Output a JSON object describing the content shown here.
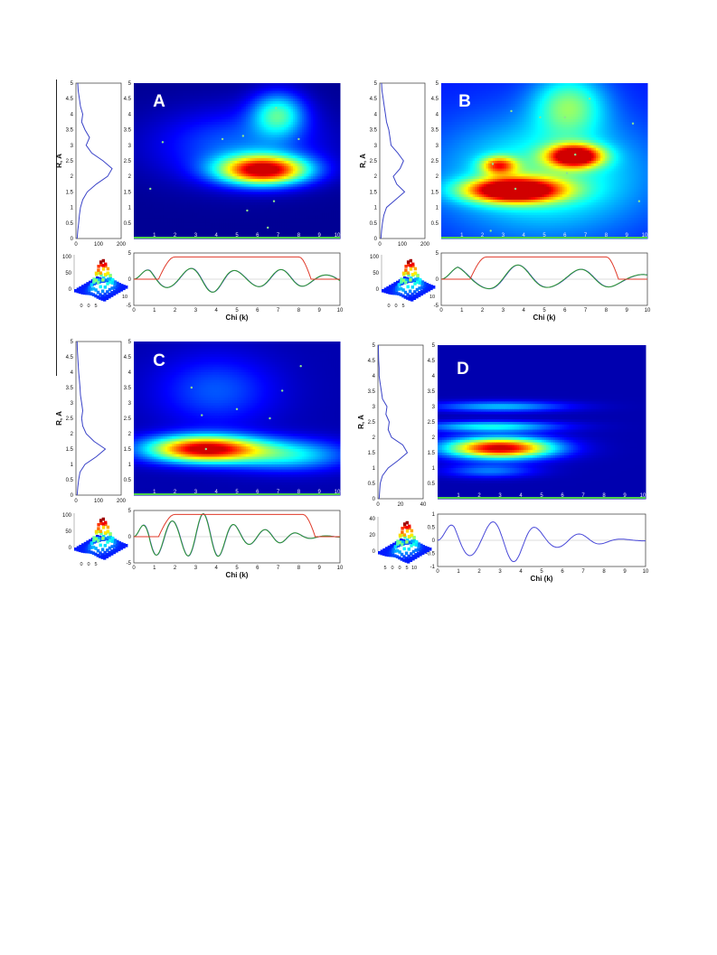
{
  "chart_data": [
    {
      "id": "A",
      "type": "heatmap",
      "panel_letter": "A",
      "heatmap": {
        "xlim": [
          0,
          10
        ],
        "ylim": [
          0,
          5
        ],
        "x_ticks": [
          "1",
          "2",
          "3",
          "4",
          "5",
          "6",
          "7",
          "8",
          "9",
          "10"
        ],
        "y_ticks": [
          "0.5",
          "1",
          "1.5",
          "2",
          "2.5",
          "3",
          "3.5",
          "4",
          "4.5",
          "5"
        ],
        "blobs": [
          {
            "x": 6.3,
            "y": 2.2,
            "sx": 1.5,
            "sy": 0.33,
            "a": 1.0
          },
          {
            "x": 7.0,
            "y": 4.0,
            "sx": 0.9,
            "sy": 0.5,
            "a": 0.42
          },
          {
            "x": 5.0,
            "y": 3.0,
            "sx": 2.8,
            "sy": 0.8,
            "a": 0.22
          }
        ],
        "background_level": 0.0,
        "markers": [
          [
            1.4,
            3.1
          ],
          [
            4.3,
            3.2
          ],
          [
            5.3,
            3.3
          ],
          [
            6.9,
            4.2
          ],
          [
            8.0,
            3.2
          ],
          [
            0.8,
            1.6
          ],
          [
            6.8,
            1.2
          ],
          [
            5.5,
            0.9
          ],
          [
            6.5,
            0.35
          ]
        ]
      },
      "ylabel": "R, A",
      "side_profile": {
        "xlim": [
          0,
          200
        ],
        "x_ticks": [
          "0",
          "100",
          "200"
        ],
        "r": [
          0.0,
          0.25,
          0.5,
          0.75,
          1.0,
          1.25,
          1.5,
          1.75,
          2.0,
          2.25,
          2.5,
          2.75,
          3.0,
          3.25,
          3.5,
          3.75,
          4.0,
          4.25,
          4.5,
          4.75,
          5.0
        ],
        "amp": [
          5,
          8,
          12,
          15,
          20,
          30,
          50,
          90,
          140,
          160,
          120,
          70,
          45,
          60,
          40,
          25,
          30,
          20,
          15,
          10,
          8
        ]
      },
      "signal": {
        "xlim": [
          0,
          10
        ],
        "ylim": [
          -5,
          5
        ],
        "x_ticks": [
          "0",
          "1",
          "2",
          "3",
          "4",
          "5",
          "6",
          "7",
          "8",
          "9",
          "10"
        ],
        "y_ticks": [
          "-5",
          "0",
          "5"
        ],
        "xlabel": "Chi (k)",
        "window": [
          1.2,
          8.6
        ],
        "freq": 2.2,
        "decay": 0.05,
        "amp0": 2.6
      },
      "surface": {
        "z_ticks": [
          "0",
          "50",
          "100"
        ],
        "x_ticks": [
          "0",
          "0",
          "5"
        ],
        "extra": "10"
      }
    },
    {
      "id": "B",
      "type": "heatmap",
      "panel_letter": "B",
      "heatmap": {
        "xlim": [
          0,
          10
        ],
        "ylim": [
          0,
          5
        ],
        "x_ticks": [
          "1",
          "2",
          "3",
          "4",
          "5",
          "6",
          "7",
          "8",
          "9",
          "10"
        ],
        "y_ticks": [
          "0.5",
          "1",
          "1.5",
          "2",
          "2.5",
          "3",
          "3.5",
          "4",
          "4.5",
          "5"
        ],
        "blobs": [
          {
            "x": 3.5,
            "y": 1.55,
            "sx": 1.6,
            "sy": 0.27,
            "a": 1.0
          },
          {
            "x": 6.5,
            "y": 2.65,
            "sx": 0.9,
            "sy": 0.25,
            "a": 0.92
          },
          {
            "x": 2.8,
            "y": 2.35,
            "sx": 0.6,
            "sy": 0.2,
            "a": 0.55
          },
          {
            "x": 6.2,
            "y": 4.3,
            "sx": 1.2,
            "sy": 0.7,
            "a": 0.35
          },
          {
            "x": 5.0,
            "y": 2.0,
            "sx": 3.5,
            "sy": 1.3,
            "a": 0.33
          }
        ],
        "background_level": 0.14,
        "markers": [
          [
            3.4,
            4.1
          ],
          [
            4.8,
            3.9
          ],
          [
            6.0,
            3.9
          ],
          [
            7.2,
            4.5
          ],
          [
            9.3,
            3.7
          ],
          [
            2.5,
            2.4
          ],
          [
            6.5,
            2.7
          ],
          [
            6.1,
            2.1
          ],
          [
            9.6,
            1.2
          ],
          [
            2.4,
            0.25
          ],
          [
            3.6,
            1.6
          ]
        ]
      },
      "ylabel": "R, A",
      "side_profile": {
        "xlim": [
          0,
          200
        ],
        "x_ticks": [
          "0",
          "100",
          "200"
        ],
        "r": [
          0.0,
          0.25,
          0.5,
          0.75,
          1.0,
          1.25,
          1.5,
          1.75,
          2.0,
          2.25,
          2.5,
          2.75,
          3.0,
          3.25,
          3.5,
          3.75,
          4.0,
          4.25,
          4.5,
          4.75,
          5.0
        ],
        "amp": [
          5,
          8,
          12,
          18,
          30,
          70,
          110,
          75,
          60,
          90,
          105,
          80,
          50,
          45,
          40,
          30,
          25,
          20,
          15,
          10,
          8
        ]
      },
      "signal": {
        "xlim": [
          0,
          10
        ],
        "ylim": [
          -5,
          5
        ],
        "x_ticks": [
          "0",
          "1",
          "2",
          "3",
          "4",
          "5",
          "6",
          "7",
          "8",
          "9",
          "10"
        ],
        "y_ticks": [
          "-5",
          "0",
          "5"
        ],
        "xlabel": "Chi (k)",
        "window": [
          1.4,
          8.6
        ],
        "freq": 3.0,
        "decay": 0.05,
        "amp0": 2.8
      },
      "surface": {
        "z_ticks": [
          "0",
          "50",
          "100"
        ],
        "x_ticks": [
          "0",
          "0",
          "5"
        ],
        "extra": "10"
      }
    },
    {
      "id": "C",
      "type": "heatmap",
      "panel_letter": "C",
      "heatmap": {
        "xlim": [
          0,
          10
        ],
        "ylim": [
          0,
          5
        ],
        "x_ticks": [
          "1",
          "2",
          "3",
          "4",
          "5",
          "6",
          "7",
          "8",
          "9",
          "10"
        ],
        "y_ticks": [
          "0.5",
          "1",
          "1.5",
          "2",
          "2.5",
          "3",
          "3.5",
          "4",
          "4.5",
          "5"
        ],
        "blobs": [
          {
            "x": 3.4,
            "y": 1.5,
            "sx": 1.9,
            "sy": 0.3,
            "a": 1.0
          },
          {
            "x": 7.5,
            "y": 1.3,
            "sx": 2.0,
            "sy": 0.35,
            "a": 0.35
          },
          {
            "x": 4.0,
            "y": 3.4,
            "sx": 2.0,
            "sy": 0.8,
            "a": 0.18
          }
        ],
        "background_level": 0.03,
        "markers": [
          [
            2.8,
            3.5
          ],
          [
            3.3,
            2.6
          ],
          [
            5.0,
            2.8
          ],
          [
            6.6,
            2.5
          ],
          [
            7.2,
            3.4
          ],
          [
            8.1,
            4.2
          ],
          [
            3.5,
            1.5
          ]
        ]
      },
      "ylabel": "R, A",
      "side_profile": {
        "xlim": [
          0,
          200
        ],
        "x_ticks": [
          "0",
          "100",
          "200"
        ],
        "r": [
          0.0,
          0.25,
          0.5,
          0.75,
          1.0,
          1.25,
          1.5,
          1.75,
          2.0,
          2.25,
          2.5,
          2.75,
          3.0,
          3.25,
          3.5,
          3.75,
          4.0,
          4.25,
          4.5,
          4.75,
          5.0
        ],
        "amp": [
          5,
          8,
          12,
          18,
          40,
          90,
          130,
          80,
          45,
          30,
          25,
          30,
          25,
          20,
          18,
          15,
          12,
          10,
          8,
          6,
          5
        ]
      },
      "signal": {
        "xlim": [
          0,
          10
        ],
        "ylim": [
          -5,
          5
        ],
        "x_ticks": [
          "0",
          "1",
          "2",
          "3",
          "4",
          "5",
          "6",
          "7",
          "8",
          "9",
          "10"
        ],
        "y_ticks": [
          "-5",
          "0",
          "5"
        ],
        "xlabel": "Chi (k)",
        "window": [
          1.2,
          8.8
        ],
        "freq": 1.5,
        "decay": 0.22,
        "amp0": 5.0
      },
      "surface": {
        "z_ticks": [
          "0",
          "50",
          "100"
        ],
        "x_ticks": [
          "0",
          "0",
          "5"
        ],
        "extra": ""
      }
    },
    {
      "id": "D",
      "type": "heatmap",
      "panel_letter": "D",
      "heatmap": {
        "xlim": [
          0,
          10
        ],
        "ylim": [
          0,
          5
        ],
        "x_ticks": [
          "1",
          "2",
          "3",
          "4",
          "5",
          "6",
          "7",
          "8",
          "9",
          "10"
        ],
        "y_ticks": [
          "0.5",
          "1",
          "1.5",
          "2",
          "2.5",
          "3",
          "3.5",
          "4",
          "4.5",
          "5"
        ],
        "blobs": [
          {
            "x": 3.0,
            "y": 1.65,
            "sx": 1.8,
            "sy": 0.24,
            "a": 1.0
          },
          {
            "x": 2.6,
            "y": 2.35,
            "sx": 2.2,
            "sy": 0.12,
            "a": 0.38
          },
          {
            "x": 3.0,
            "y": 3.0,
            "sx": 2.2,
            "sy": 0.12,
            "a": 0.3
          },
          {
            "x": 2.5,
            "y": 0.9,
            "sx": 1.5,
            "sy": 0.15,
            "a": 0.22
          }
        ],
        "background_level": 0.03,
        "markers": []
      },
      "ylabel": "R, A",
      "side_profile": {
        "xlim": [
          0,
          40
        ],
        "x_ticks": [
          "0",
          "20",
          "40"
        ],
        "r": [
          0.0,
          0.25,
          0.5,
          0.75,
          1.0,
          1.25,
          1.5,
          1.75,
          2.0,
          2.25,
          2.5,
          2.75,
          3.0,
          3.25,
          3.5,
          3.75,
          4.0,
          4.25,
          4.5,
          4.75,
          5.0
        ],
        "amp": [
          1,
          1.5,
          2,
          4,
          9,
          18,
          26,
          22,
          12,
          9,
          10,
          7,
          8,
          4,
          3,
          2,
          1,
          1,
          0.6,
          0.5,
          0.4
        ]
      },
      "signal": {
        "xlim": [
          0,
          10
        ],
        "ylim": [
          -1,
          1
        ],
        "x_ticks": [
          "0",
          "1",
          "2",
          "3",
          "4",
          "5",
          "6",
          "7",
          "8",
          "9",
          "10"
        ],
        "y_ticks": [
          "-1",
          "-0.5",
          "0",
          "0.5",
          "1"
        ],
        "xlabel": "Chi (k)",
        "window": null,
        "freq": 2.1,
        "decay": 0.22,
        "amp0": 0.95
      },
      "surface": {
        "z_ticks": [
          "0",
          "20",
          "40"
        ],
        "x_ticks": [
          "5",
          "0",
          "0",
          "5",
          "10"
        ],
        "extra": ""
      }
    }
  ],
  "colors": {
    "side_line": "#3a43c8",
    "signal_blue": "#4848d8",
    "signal_green": "#2e9a2e",
    "window_red": "#e03a2a",
    "accent_green": "#4cd14c"
  }
}
